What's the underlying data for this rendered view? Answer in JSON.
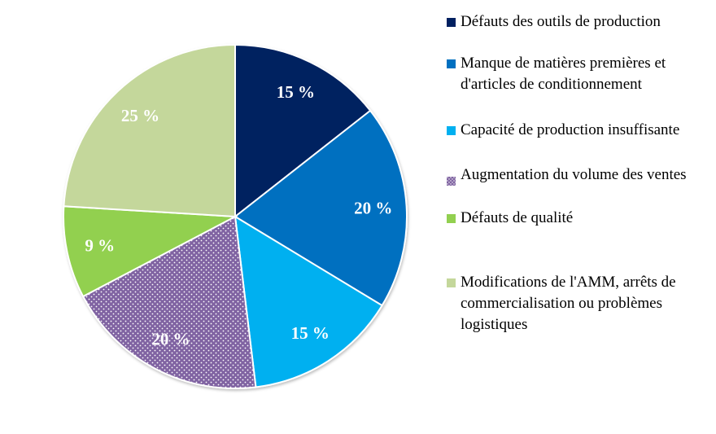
{
  "chart_data": {
    "type": "pie",
    "title": "",
    "start": "top",
    "direction": "clockwise",
    "legend_position": "right",
    "slices": [
      {
        "label": "Défauts des outils de production",
        "value": 15,
        "data_label": "15 %",
        "color": "#002060"
      },
      {
        "label": "Manque de matières premières et d'articles de conditionnement",
        "value": 20,
        "data_label": "20 %",
        "color": "#0070C0"
      },
      {
        "label": "Capacité de production insuffisante",
        "value": 15,
        "data_label": "15 %",
        "color": "#00B0F0"
      },
      {
        "label": "Augmentation du volume des ventes",
        "value": 20,
        "data_label": "20 %",
        "color": "#8064A2",
        "pattern": "dotted"
      },
      {
        "label": "Défauts de qualité",
        "value": 9,
        "data_label": "9 %",
        "color": "#92D050"
      },
      {
        "label": "Modifications de l'AMM, arrêts de commercialisation ou problèmes logistiques",
        "value": 25,
        "data_label": "25 %",
        "color": "#C4D79B"
      }
    ]
  }
}
